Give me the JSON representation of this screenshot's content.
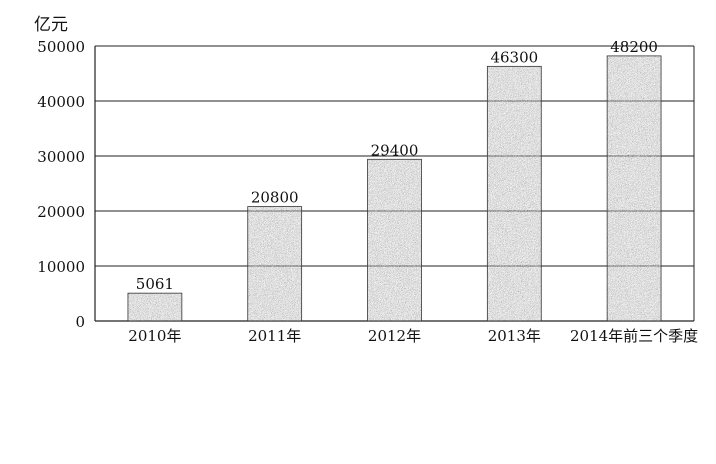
{
  "chart_data": {
    "type": "bar",
    "unit_label": "亿元",
    "title": "",
    "xlabel": "",
    "ylabel": "亿元",
    "categories": [
      "2010年",
      "2011年",
      "2012年",
      "2013年",
      "2014年前三个季度"
    ],
    "values": [
      5061,
      20800,
      29400,
      46300,
      48200
    ],
    "data_labels": [
      "5061",
      "20800",
      "29400",
      "46300",
      "48200"
    ],
    "ylim": [
      0,
      50000
    ],
    "yticks": [
      0,
      10000,
      20000,
      30000,
      40000,
      50000
    ],
    "ytick_labels": [
      "0",
      "10000",
      "20000",
      "30000",
      "40000",
      "50000"
    ],
    "grid": true,
    "legend": "none",
    "bar_fill": "stippled gray"
  }
}
